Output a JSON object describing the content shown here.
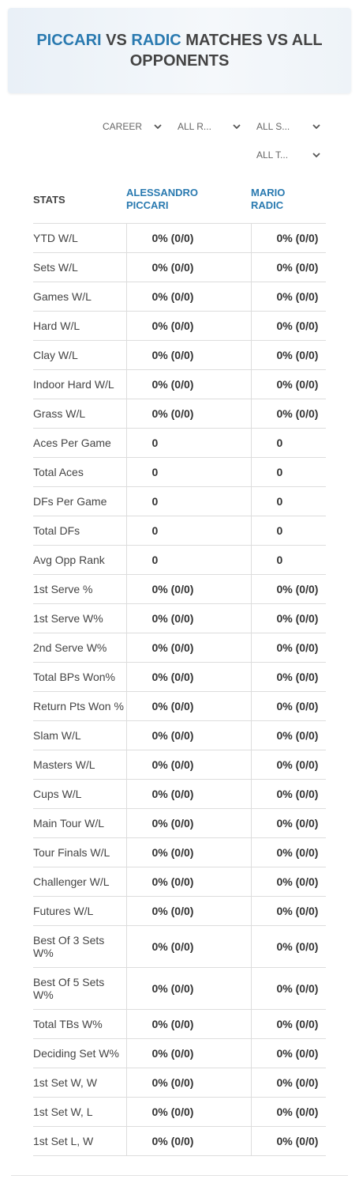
{
  "header": {
    "title": {
      "player1": "PICCARI",
      "vs": "VS",
      "player2": "RADIC",
      "rest": "MATCHES VS ALL OPPONENTS"
    }
  },
  "filters": [
    "CAREER",
    "ALL R...",
    "ALL S...",
    "ALL T..."
  ],
  "table": {
    "columns": [
      "STATS",
      "ALESSANDRO PICCARI",
      "MARIO RADIC"
    ],
    "rows": [
      [
        "YTD W/L",
        "0% (0/0)",
        "0% (0/0)"
      ],
      [
        "Sets W/L",
        "0% (0/0)",
        "0% (0/0)"
      ],
      [
        "Games W/L",
        "0% (0/0)",
        "0% (0/0)"
      ],
      [
        "Hard W/L",
        "0% (0/0)",
        "0% (0/0)"
      ],
      [
        "Clay W/L",
        "0% (0/0)",
        "0% (0/0)"
      ],
      [
        "Indoor Hard W/L",
        "0% (0/0)",
        "0% (0/0)"
      ],
      [
        "Grass W/L",
        "0% (0/0)",
        "0% (0/0)"
      ],
      [
        "Aces Per Game",
        "0",
        "0"
      ],
      [
        "Total Aces",
        "0",
        "0"
      ],
      [
        "DFs Per Game",
        "0",
        "0"
      ],
      [
        "Total DFs",
        "0",
        "0"
      ],
      [
        "Avg Opp Rank",
        "0",
        "0"
      ],
      [
        "1st Serve %",
        "0% (0/0)",
        "0% (0/0)"
      ],
      [
        "1st Serve W%",
        "0% (0/0)",
        "0% (0/0)"
      ],
      [
        "2nd Serve W%",
        "0% (0/0)",
        "0% (0/0)"
      ],
      [
        "Total BPs Won%",
        "0% (0/0)",
        "0% (0/0)"
      ],
      [
        "Return Pts Won %",
        "0% (0/0)",
        "0% (0/0)"
      ],
      [
        "Slam W/L",
        "0% (0/0)",
        "0% (0/0)"
      ],
      [
        "Masters W/L",
        "0% (0/0)",
        "0% (0/0)"
      ],
      [
        "Cups W/L",
        "0% (0/0)",
        "0% (0/0)"
      ],
      [
        "Main Tour W/L",
        "0% (0/0)",
        "0% (0/0)"
      ],
      [
        "Tour Finals W/L",
        "0% (0/0)",
        "0% (0/0)"
      ],
      [
        "Challenger W/L",
        "0% (0/0)",
        "0% (0/0)"
      ],
      [
        "Futures W/L",
        "0% (0/0)",
        "0% (0/0)"
      ],
      [
        "Best Of 3 Sets W%",
        "0% (0/0)",
        "0% (0/0)"
      ],
      [
        "Best Of 5 Sets W%",
        "0% (0/0)",
        "0% (0/0)"
      ],
      [
        "Total TBs W%",
        "0% (0/0)",
        "0% (0/0)"
      ],
      [
        "Deciding Set W%",
        "0% (0/0)",
        "0% (0/0)"
      ],
      [
        "1st Set W, W",
        "0% (0/0)",
        "0% (0/0)"
      ],
      [
        "1st Set W, L",
        "0% (0/0)",
        "0% (0/0)"
      ],
      [
        "1st Set L, W",
        "0% (0/0)",
        "0% (0/0)"
      ]
    ]
  }
}
